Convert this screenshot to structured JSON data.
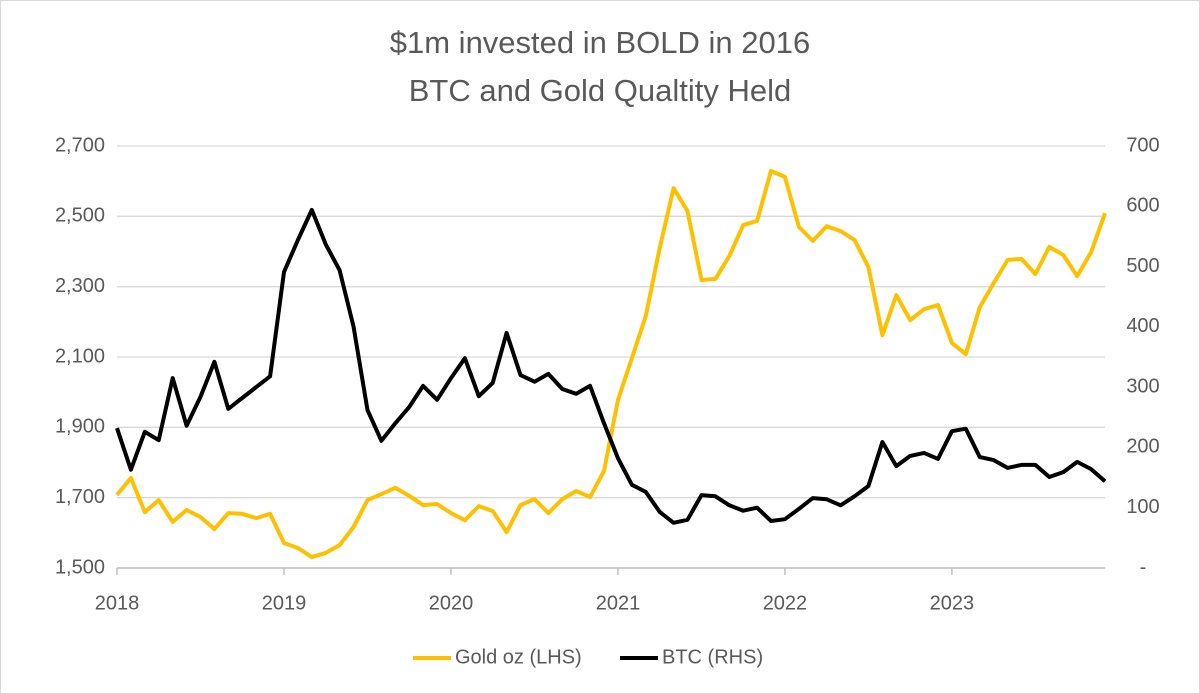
{
  "chart_data": {
    "type": "line",
    "title": "$1m invested in  BOLD in 2016",
    "subtitle": "BTC and Gold Qualtity Held",
    "categories": [
      "2018",
      null,
      null,
      null,
      null,
      null,
      null,
      null,
      null,
      null,
      null,
      null,
      "2019",
      null,
      null,
      null,
      null,
      null,
      null,
      null,
      null,
      null,
      null,
      null,
      "2020",
      null,
      null,
      null,
      null,
      null,
      null,
      null,
      null,
      null,
      null,
      null,
      "2021",
      null,
      null,
      null,
      null,
      null,
      null,
      null,
      null,
      null,
      null,
      null,
      "2022",
      null,
      null,
      null,
      null,
      null,
      null,
      null,
      null,
      null,
      null,
      null,
      "2023",
      null,
      null,
      null,
      null,
      null,
      null,
      null,
      null,
      null,
      null,
      null
    ],
    "series": [
      {
        "name": "Gold oz (LHS)",
        "color": "#FFC000",
        "axis": "y",
        "values": [
          1708,
          1756,
          1659,
          1693,
          1631,
          1665,
          1645,
          1611,
          1656,
          1654,
          1642,
          1654,
          1571,
          1557,
          1531,
          1543,
          1565,
          1617,
          1693,
          1710,
          1728,
          1705,
          1679,
          1682,
          1656,
          1636,
          1676,
          1662,
          1602,
          1679,
          1696,
          1656,
          1696,
          1719,
          1702,
          1776,
          1978,
          2097,
          2217,
          2410,
          2580,
          2515,
          2319,
          2322,
          2387,
          2475,
          2487,
          2629,
          2612,
          2470,
          2430,
          2472,
          2458,
          2433,
          2356,
          2162,
          2276,
          2205,
          2236,
          2248,
          2140,
          2108,
          2242,
          2310,
          2376,
          2379,
          2336,
          2413,
          2390,
          2330,
          2398,
          2509
        ]
      },
      {
        "name": "BTC (RHS)",
        "color": "#000000",
        "axis": "y2",
        "values": [
          232,
          163,
          226,
          212,
          315,
          236,
          284,
          342,
          264,
          282,
          300,
          318,
          491,
          544,
          594,
          537,
          494,
          400,
          262,
          211,
          240,
          267,
          302,
          279,
          315,
          348,
          285,
          307,
          390,
          320,
          309,
          322,
          297,
          289,
          302,
          240,
          182,
          138,
          126,
          93,
          75,
          80,
          121,
          119,
          104,
          95,
          100,
          78,
          81,
          98,
          116,
          114,
          104,
          119,
          136,
          209,
          169,
          186,
          191,
          181,
          227,
          231,
          184,
          179,
          166,
          171,
          171,
          151,
          159,
          176,
          164,
          144
        ]
      }
    ],
    "ylim": [
      1500,
      2700
    ],
    "yticks": [
      {
        "value": 1500,
        "label": "1,500"
      },
      {
        "value": 1700,
        "label": "1,700"
      },
      {
        "value": 1900,
        "label": "1,900"
      },
      {
        "value": 2100,
        "label": "2,100"
      },
      {
        "value": 2300,
        "label": "2,300"
      },
      {
        "value": 2500,
        "label": "2,500"
      },
      {
        "value": 2700,
        "label": "2,700"
      }
    ],
    "y2lim": [
      0,
      700
    ],
    "y2ticks": [
      {
        "value": 0,
        "label": "-"
      },
      100,
      200,
      300,
      400,
      500,
      600,
      700
    ],
    "grid": true,
    "legend": "bottom"
  }
}
